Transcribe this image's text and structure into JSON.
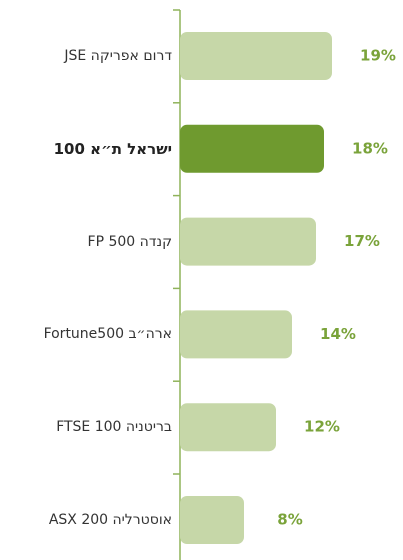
{
  "chart_data": {
    "type": "barh",
    "categories": [
      "דרום אפריקה JSE",
      "ישראל ת״א 100",
      "קנדה FP 500",
      "ארה״ב Fortune500",
      "בריטניה FTSE 100",
      "אוסטרליה ASX 200"
    ],
    "values": [
      19,
      18,
      17,
      14,
      12,
      8
    ],
    "value_labels": [
      "19%",
      "18%",
      "17%",
      "14%",
      "12%",
      "8%"
    ],
    "colors": [
      "#c6d7a8",
      "#6f9a2f",
      "#c6d7a8",
      "#c6d7a8",
      "#c6d7a8",
      "#c6d7a8"
    ],
    "label_color": "#7aa33a",
    "axis_color": "#8fb35a"
  }
}
